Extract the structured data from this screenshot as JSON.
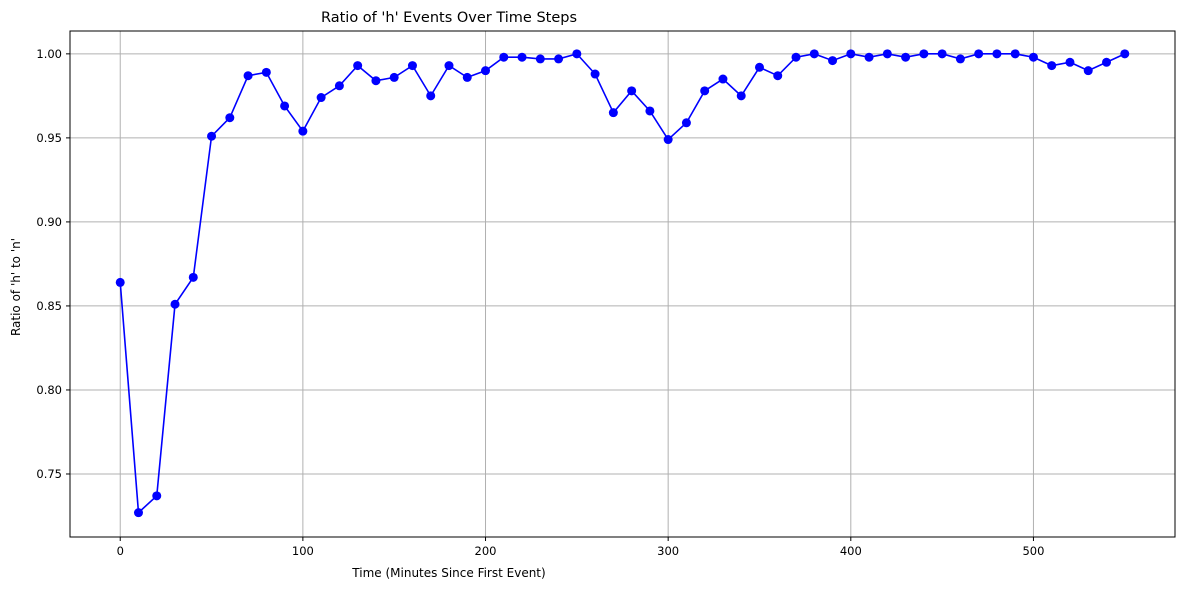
{
  "chart_data": {
    "type": "line",
    "title": "Ratio of 'h' Events Over Time Steps",
    "xlabel": "Time (Minutes Since First Event)",
    "ylabel": "Ratio of 'h' to 'n'",
    "xlim": [
      -27.5,
      577.5
    ],
    "ylim": [
      0.7125,
      1.0136
    ],
    "xticks": [
      0,
      100,
      200,
      300,
      400,
      500
    ],
    "xtick_labels": [
      "0",
      "100",
      "200",
      "300",
      "400",
      "500"
    ],
    "yticks": [
      0.75,
      0.8,
      0.85,
      0.9,
      0.95,
      1.0
    ],
    "ytick_labels": [
      "0.75",
      "0.80",
      "0.85",
      "0.90",
      "0.95",
      "1.00"
    ],
    "grid": true,
    "colors": {
      "line": "#0000ff",
      "marker": "#0000ff"
    },
    "series": [
      {
        "x": [
          0,
          10,
          20,
          30,
          40,
          50,
          60,
          70,
          80,
          90,
          100,
          110,
          120,
          130,
          140,
          150,
          160,
          170,
          180,
          190,
          200,
          210,
          220,
          230,
          240,
          250,
          260,
          270,
          280,
          290,
          300,
          310,
          320,
          330,
          340,
          350,
          360,
          370,
          380,
          390,
          400,
          410,
          420,
          430,
          440,
          450,
          460,
          470,
          480,
          490,
          500,
          510,
          520,
          530,
          540,
          550
        ],
        "values": [
          0.864,
          0.727,
          0.737,
          0.851,
          0.867,
          0.951,
          0.962,
          0.987,
          0.989,
          0.969,
          0.954,
          0.974,
          0.981,
          0.993,
          0.984,
          0.986,
          0.993,
          0.975,
          0.993,
          0.986,
          0.99,
          0.998,
          0.998,
          0.997,
          0.997,
          1.0,
          0.988,
          0.965,
          0.978,
          0.966,
          0.949,
          0.959,
          0.978,
          0.985,
          0.975,
          0.992,
          0.987,
          0.998,
          1.0,
          0.996,
          1.0,
          0.998,
          1.0,
          0.998,
          1.0,
          1.0,
          0.997,
          1.0,
          1.0,
          1.0,
          0.998,
          0.993,
          0.995,
          0.99,
          0.995,
          1.0
        ]
      }
    ]
  }
}
